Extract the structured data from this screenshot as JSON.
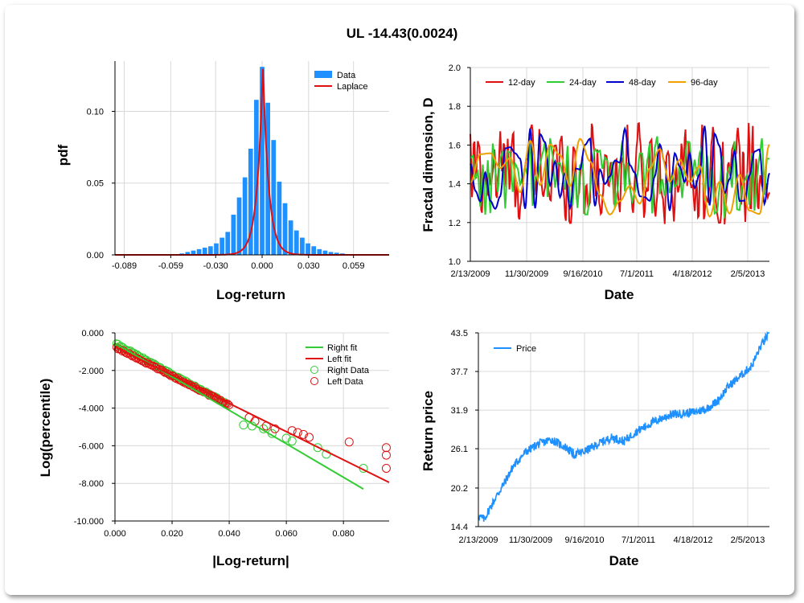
{
  "title": "UL -14.43(0.0024)",
  "chart_data": [
    {
      "type": "bar",
      "xlabel": "Log-return",
      "ylabel": "pdf",
      "xlim": [
        -0.095,
        0.082
      ],
      "ylim": [
        0,
        0.135
      ],
      "xticks": [
        "-0.089",
        "-0.059",
        "-0.030",
        "0.000",
        "0.030",
        "0.059"
      ],
      "xtick_values": [
        -0.089,
        -0.059,
        -0.03,
        0.0,
        0.03,
        0.059
      ],
      "yticks": [
        "0.00",
        "0.05",
        "0.10"
      ],
      "ytick_values": [
        0,
        0.05,
        0.1
      ],
      "legend": [
        "Data",
        "Laplace"
      ],
      "bin_width": 0.0037,
      "bins_x": [
        -0.0518,
        -0.0481,
        -0.0444,
        -0.0407,
        -0.037,
        -0.0333,
        -0.0296,
        -0.0259,
        -0.0222,
        -0.0185,
        -0.0148,
        -0.0111,
        -0.0074,
        -0.0037,
        0.0,
        0.0037,
        0.0074,
        0.0111,
        0.0148,
        0.0185,
        0.0222,
        0.0259,
        0.0296,
        0.0333,
        0.037,
        0.0407,
        0.0444,
        0.0481,
        0.0518
      ],
      "values": [
        0.001,
        0.002,
        0.003,
        0.004,
        0.005,
        0.006,
        0.008,
        0.012,
        0.016,
        0.028,
        0.04,
        0.054,
        0.074,
        0.108,
        0.131,
        0.106,
        0.08,
        0.051,
        0.036,
        0.024,
        0.017,
        0.012,
        0.008,
        0.006,
        0.004,
        0.003,
        0.002,
        0.0015,
        0.001
      ],
      "laplace": {
        "mu": 0.0005,
        "b": 0.0037
      }
    },
    {
      "type": "line",
      "xlabel": "Date",
      "ylabel": "Fractal dimension, D",
      "ylim": [
        1.0,
        2.0
      ],
      "yticks": [
        "1.0",
        "1.2",
        "1.4",
        "1.6",
        "1.8",
        "2.0"
      ],
      "ytick_values": [
        1.0,
        1.2,
        1.4,
        1.6,
        1.8,
        2.0
      ],
      "xticks": [
        "2/13/2009",
        "11/30/2009",
        "9/16/2010",
        "7/1/2011",
        "4/18/2012",
        "2/5/2013"
      ],
      "series": [
        {
          "name": "12-day",
          "color": "#e01010"
        },
        {
          "name": "24-day",
          "color": "#33cc33"
        },
        {
          "name": "48-day",
          "color": "#0000cc"
        },
        {
          "name": "96-day",
          "color": "#f0a000"
        }
      ]
    },
    {
      "type": "scatter",
      "xlabel": "|Log-return|",
      "ylabel": "Log(percentile)",
      "xlim": [
        0,
        0.096
      ],
      "ylim": [
        -10,
        0
      ],
      "xticks": [
        "0.000",
        "0.020",
        "0.040",
        "0.060",
        "0.080"
      ],
      "xtick_values": [
        0,
        0.02,
        0.04,
        0.06,
        0.08
      ],
      "yticks": [
        "0.000",
        "-2.000",
        "-4.000",
        "-6.000",
        "-8.000",
        "-10.000"
      ],
      "ytick_values": [
        0,
        -2,
        -4,
        -6,
        -8,
        -10
      ],
      "legend": [
        "Right fit",
        "Left fit",
        "Right Data",
        "Left Data"
      ],
      "right_fit": {
        "x": [
          0.0,
          0.087
        ],
        "y": [
          -0.55,
          -8.3
        ]
      },
      "left_fit": {
        "x": [
          0.0,
          0.096
        ],
        "y": [
          -0.75,
          -7.95
        ]
      },
      "right_tail_points": {
        "x": [
          0.045,
          0.048,
          0.052,
          0.055,
          0.06,
          0.062,
          0.071,
          0.074,
          0.087
        ],
        "y": [
          -4.9,
          -4.95,
          -5.1,
          -5.35,
          -5.6,
          -5.75,
          -6.1,
          -6.45,
          -7.2
        ]
      },
      "left_tail_points": {
        "x": [
          0.047,
          0.049,
          0.053,
          0.056,
          0.062,
          0.064,
          0.066,
          0.068,
          0.082,
          0.095,
          0.095,
          0.095
        ],
        "y": [
          -4.5,
          -4.7,
          -4.95,
          -5.1,
          -5.2,
          -5.3,
          -5.4,
          -5.55,
          -5.8,
          -6.1,
          -6.5,
          -7.2
        ]
      }
    },
    {
      "type": "line",
      "xlabel": "Date",
      "ylabel": "Return price",
      "ylim": [
        14.4,
        43.5
      ],
      "yticks": [
        "43.5",
        "37.7",
        "31.9",
        "26.1",
        "20.2",
        "14.4"
      ],
      "ytick_values": [
        43.5,
        37.7,
        31.9,
        26.1,
        20.2,
        14.4
      ],
      "xticks": [
        "2/13/2009",
        "11/30/2009",
        "9/16/2010",
        "7/1/2011",
        "4/18/2012",
        "2/5/2013"
      ],
      "legend": [
        "Price"
      ],
      "series": [
        {
          "name": "Price",
          "color": "#1e90ff",
          "anchors_t": [
            0,
            0.02,
            0.04,
            0.06,
            0.09,
            0.12,
            0.16,
            0.2,
            0.25,
            0.3,
            0.33,
            0.37,
            0.42,
            0.46,
            0.5,
            0.54,
            0.58,
            0.62,
            0.66,
            0.7,
            0.74,
            0.78,
            0.82,
            0.86,
            0.9,
            0.94,
            0.97,
            1.0
          ],
          "anchors_v": [
            16.0,
            15.5,
            17.2,
            18.8,
            21.0,
            23.5,
            25.5,
            26.7,
            27.5,
            26.3,
            25.2,
            25.8,
            27.0,
            27.8,
            27.2,
            28.6,
            29.6,
            30.5,
            31.2,
            31.4,
            31.6,
            32.0,
            33.2,
            35.5,
            37.0,
            38.6,
            41.5,
            43.5
          ]
        }
      ]
    }
  ]
}
